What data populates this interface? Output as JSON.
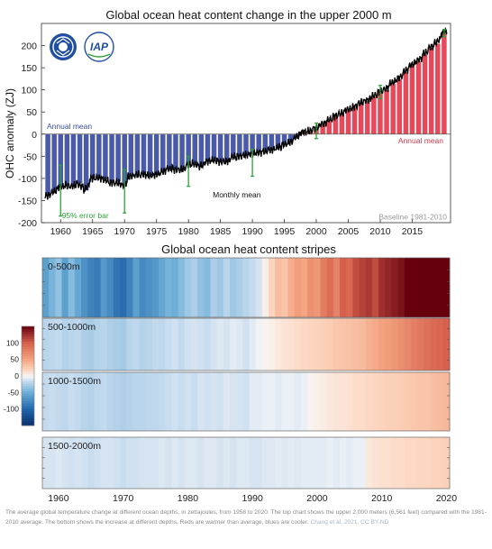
{
  "chart_data": [
    {
      "type": "bar",
      "title": "Global ocean heat content change in the upper 2000 m",
      "ylabel": "OHC anomaly (ZJ)",
      "xlim": [
        1957,
        2021
      ],
      "ylim": [
        -200,
        250
      ],
      "yticks": [
        -200,
        -150,
        -100,
        -50,
        0,
        50,
        100,
        150,
        200
      ],
      "xticks": [
        1960,
        1965,
        1970,
        1975,
        1980,
        1985,
        1990,
        1995,
        2000,
        2005,
        2010,
        2015
      ],
      "grid": false,
      "colors": {
        "negative": "#4a5aa8",
        "positive": "#e64a5a",
        "monthly": "#000000",
        "errorbar": "#2fa33a",
        "zero_line": "#555555"
      },
      "x": [
        1958,
        1959,
        1960,
        1961,
        1962,
        1963,
        1964,
        1965,
        1966,
        1967,
        1968,
        1969,
        1970,
        1971,
        1972,
        1973,
        1974,
        1975,
        1976,
        1977,
        1978,
        1979,
        1980,
        1981,
        1982,
        1983,
        1984,
        1985,
        1986,
        1987,
        1988,
        1989,
        1990,
        1991,
        1992,
        1993,
        1994,
        1995,
        1996,
        1997,
        1998,
        1999,
        2000,
        2001,
        2002,
        2003,
        2004,
        2005,
        2006,
        2007,
        2008,
        2009,
        2010,
        2011,
        2012,
        2013,
        2014,
        2015,
        2016,
        2017,
        2018,
        2019,
        2020
      ],
      "series": [
        {
          "name": "Annual mean",
          "values": [
            -140,
            -132,
            -120,
            -115,
            -118,
            -112,
            -128,
            -100,
            -98,
            -102,
            -110,
            -108,
            -118,
            -96,
            -92,
            -90,
            -94,
            -92,
            -86,
            -78,
            -80,
            -82,
            -70,
            -66,
            -74,
            -62,
            -58,
            -62,
            -64,
            -52,
            -50,
            -48,
            -45,
            -42,
            -40,
            -36,
            -32,
            -24,
            -20,
            -8,
            5,
            6,
            12,
            22,
            30,
            40,
            45,
            55,
            60,
            70,
            75,
            85,
            95,
            100,
            115,
            125,
            140,
            155,
            165,
            180,
            195,
            205,
            228
          ]
        },
        {
          "name": "Monthly mean"
        }
      ],
      "error_bars": [
        {
          "x": 1960,
          "y": -120,
          "low": -185,
          "high": -70
        },
        {
          "x": 1970,
          "y": -118,
          "low": -178,
          "high": -80
        },
        {
          "x": 1980,
          "y": -70,
          "low": -118,
          "high": -50
        },
        {
          "x": 1990,
          "y": -45,
          "low": -95,
          "high": -35
        },
        {
          "x": 2000,
          "y": 12,
          "low": -10,
          "high": 25
        },
        {
          "x": 2010,
          "y": 95,
          "low": 80,
          "high": 110
        },
        {
          "x": 2020,
          "y": 228,
          "low": 220,
          "high": 236
        }
      ],
      "annotations": {
        "annual_left": "Annual mean",
        "annual_right": "Annual mean",
        "monthly": "Monthly mean",
        "errorbar": "95% error bar",
        "baseline": "Baseline 1981-2010"
      }
    },
    {
      "type": "heatmap",
      "title": "Global ocean heat content stripes",
      "xlim": [
        1958,
        2021
      ],
      "xticks": [
        1960,
        1970,
        1980,
        1990,
        2000,
        2010,
        2020
      ],
      "colorbar": {
        "ticks": [
          100,
          50,
          0,
          -50,
          -100
        ],
        "range": [
          -150,
          150
        ]
      },
      "rows": [
        {
          "label": "0-500m",
          "values": [
            -60,
            -45,
            -35,
            -60,
            -40,
            -55,
            -70,
            -80,
            -85,
            -65,
            -75,
            -90,
            -95,
            -80,
            -60,
            -75,
            -70,
            -65,
            -55,
            -45,
            -50,
            -40,
            -30,
            -25,
            -35,
            -40,
            -25,
            -30,
            -20,
            -30,
            -25,
            -20,
            -15,
            -10,
            5,
            20,
            35,
            30,
            45,
            55,
            50,
            65,
            60,
            80,
            90,
            75,
            100,
            95,
            110,
            115,
            120,
            110,
            125,
            130,
            135,
            140,
            160,
            170,
            165,
            175,
            180,
            185,
            195
          ]
        },
        {
          "label": "500-1000m",
          "values": [
            -20,
            -18,
            -16,
            -22,
            -20,
            -18,
            -24,
            -26,
            -22,
            -20,
            -24,
            -26,
            -28,
            -20,
            -18,
            -22,
            -20,
            -16,
            -18,
            -14,
            -12,
            -16,
            -12,
            -10,
            -12,
            -14,
            -10,
            -8,
            -10,
            -6,
            -8,
            -12,
            -6,
            -2,
            2,
            4,
            8,
            10,
            12,
            14,
            16,
            18,
            20,
            22,
            24,
            28,
            30,
            32,
            34,
            36,
            42,
            46,
            52,
            56,
            60,
            66,
            72,
            78,
            82,
            88,
            92,
            96,
            100
          ]
        },
        {
          "label": "1000-1500m",
          "values": [
            -16,
            -14,
            -16,
            -18,
            -14,
            -16,
            -20,
            -22,
            -18,
            -16,
            -20,
            -22,
            -24,
            -22,
            -20,
            -20,
            -18,
            -18,
            -16,
            -14,
            -12,
            -14,
            -12,
            -14,
            -10,
            -12,
            -10,
            -12,
            -8,
            -10,
            -10,
            -12,
            -6,
            -6,
            -4,
            -4,
            -6,
            -4,
            -4,
            -6,
            -4,
            2,
            4,
            6,
            8,
            10,
            10,
            12,
            14,
            14,
            16,
            18,
            20,
            22,
            22,
            24,
            26,
            28,
            30,
            30,
            34,
            36,
            38
          ]
        },
        {
          "label": "1500-2000m",
          "values": [
            -10,
            -10,
            -8,
            -10,
            -12,
            -10,
            -12,
            -14,
            -12,
            -10,
            -10,
            -12,
            -14,
            -12,
            -12,
            -10,
            -10,
            -10,
            -8,
            -10,
            -8,
            -10,
            -8,
            -8,
            -10,
            -8,
            -8,
            -10,
            -8,
            -10,
            -8,
            -8,
            -10,
            -10,
            -8,
            -8,
            -6,
            -8,
            -6,
            -8,
            -6,
            -6,
            -6,
            -6,
            -4,
            -6,
            -4,
            -6,
            -4,
            -4,
            8,
            10,
            12,
            12,
            14,
            14,
            16,
            16,
            18,
            18,
            20,
            20,
            22
          ]
        }
      ]
    }
  ],
  "caption": {
    "text": "The average global temperature change at different ocean depths, in zettajoules, from 1958 to 2020. The top chart shows the upper 2,000 meters (6,561 feet) compared with the 1981-2010 average. The bottom shows the increase at different depths. Reds are warmer than average, blues are cooler. ",
    "credit": "Chang et al, 2021, CC BY-ND"
  },
  "logos": [
    "cas-logo",
    "iap-logo"
  ]
}
